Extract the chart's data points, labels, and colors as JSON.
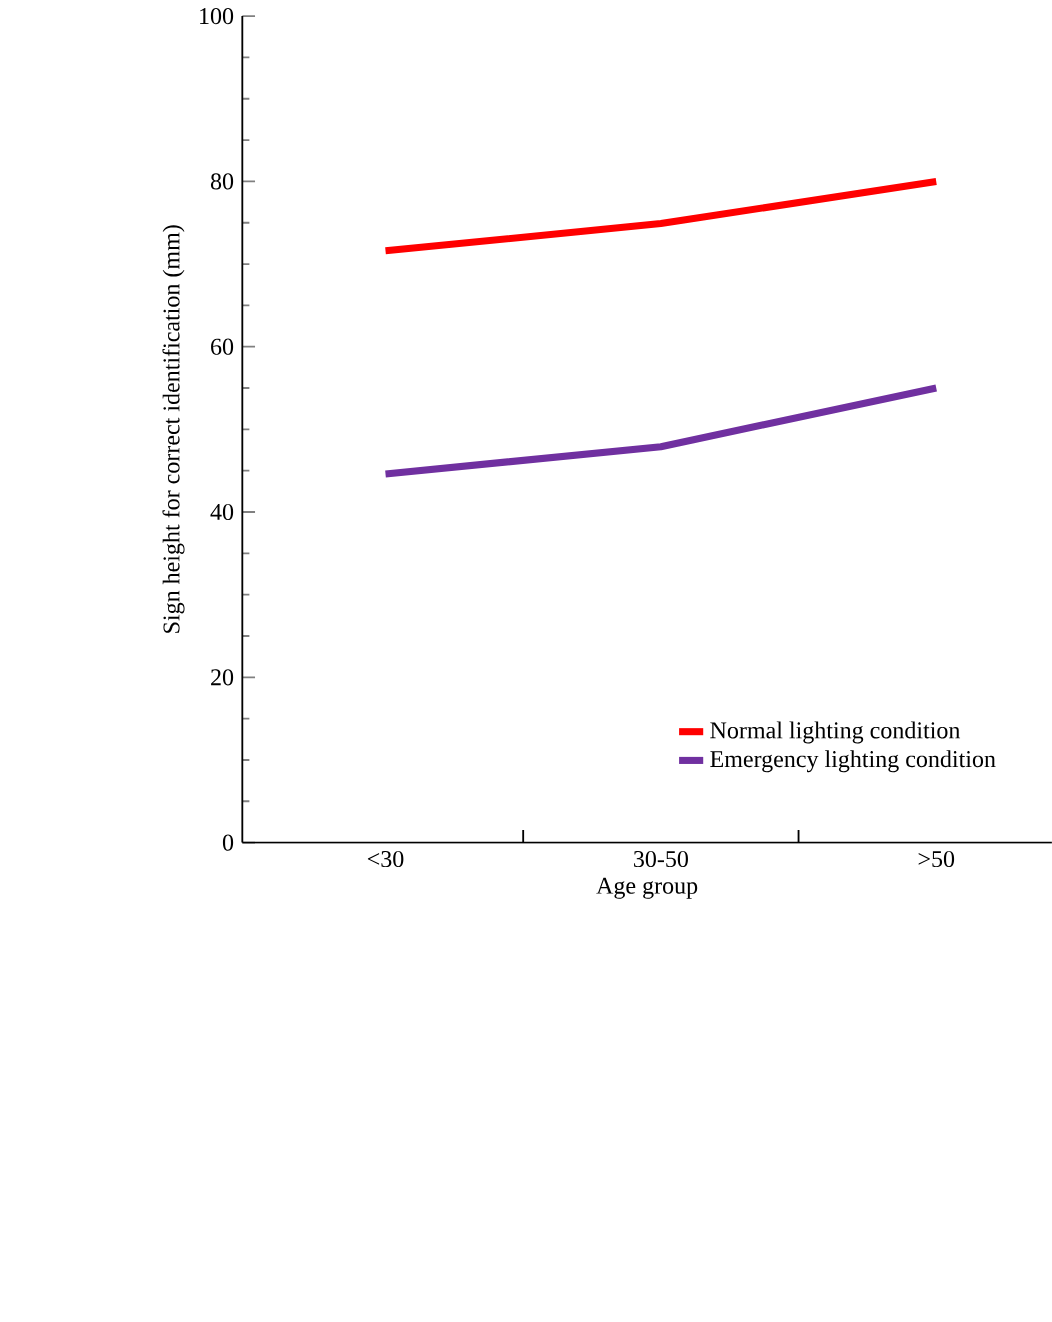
{
  "chart_data": {
    "type": "line",
    "xlabel": "Age group",
    "ylabel": "Sign height for correct identification (mm)",
    "categories": [
      "<30",
      "30-50",
      ">50"
    ],
    "series": [
      {
        "name": "Normal lighting condition",
        "color": "#ff0000",
        "values": [
          71.6,
          74.9,
          80.0
        ]
      },
      {
        "name": "Emergency lighting condition",
        "color": "#7030a0",
        "values": [
          44.6,
          47.9,
          55.0
        ]
      }
    ],
    "ylim": [
      0,
      100
    ],
    "yticks": [
      0,
      20,
      40,
      60,
      80,
      100
    ],
    "grid": false,
    "legend": "bottom right",
    "marker": "none",
    "line_style": "solid"
  }
}
